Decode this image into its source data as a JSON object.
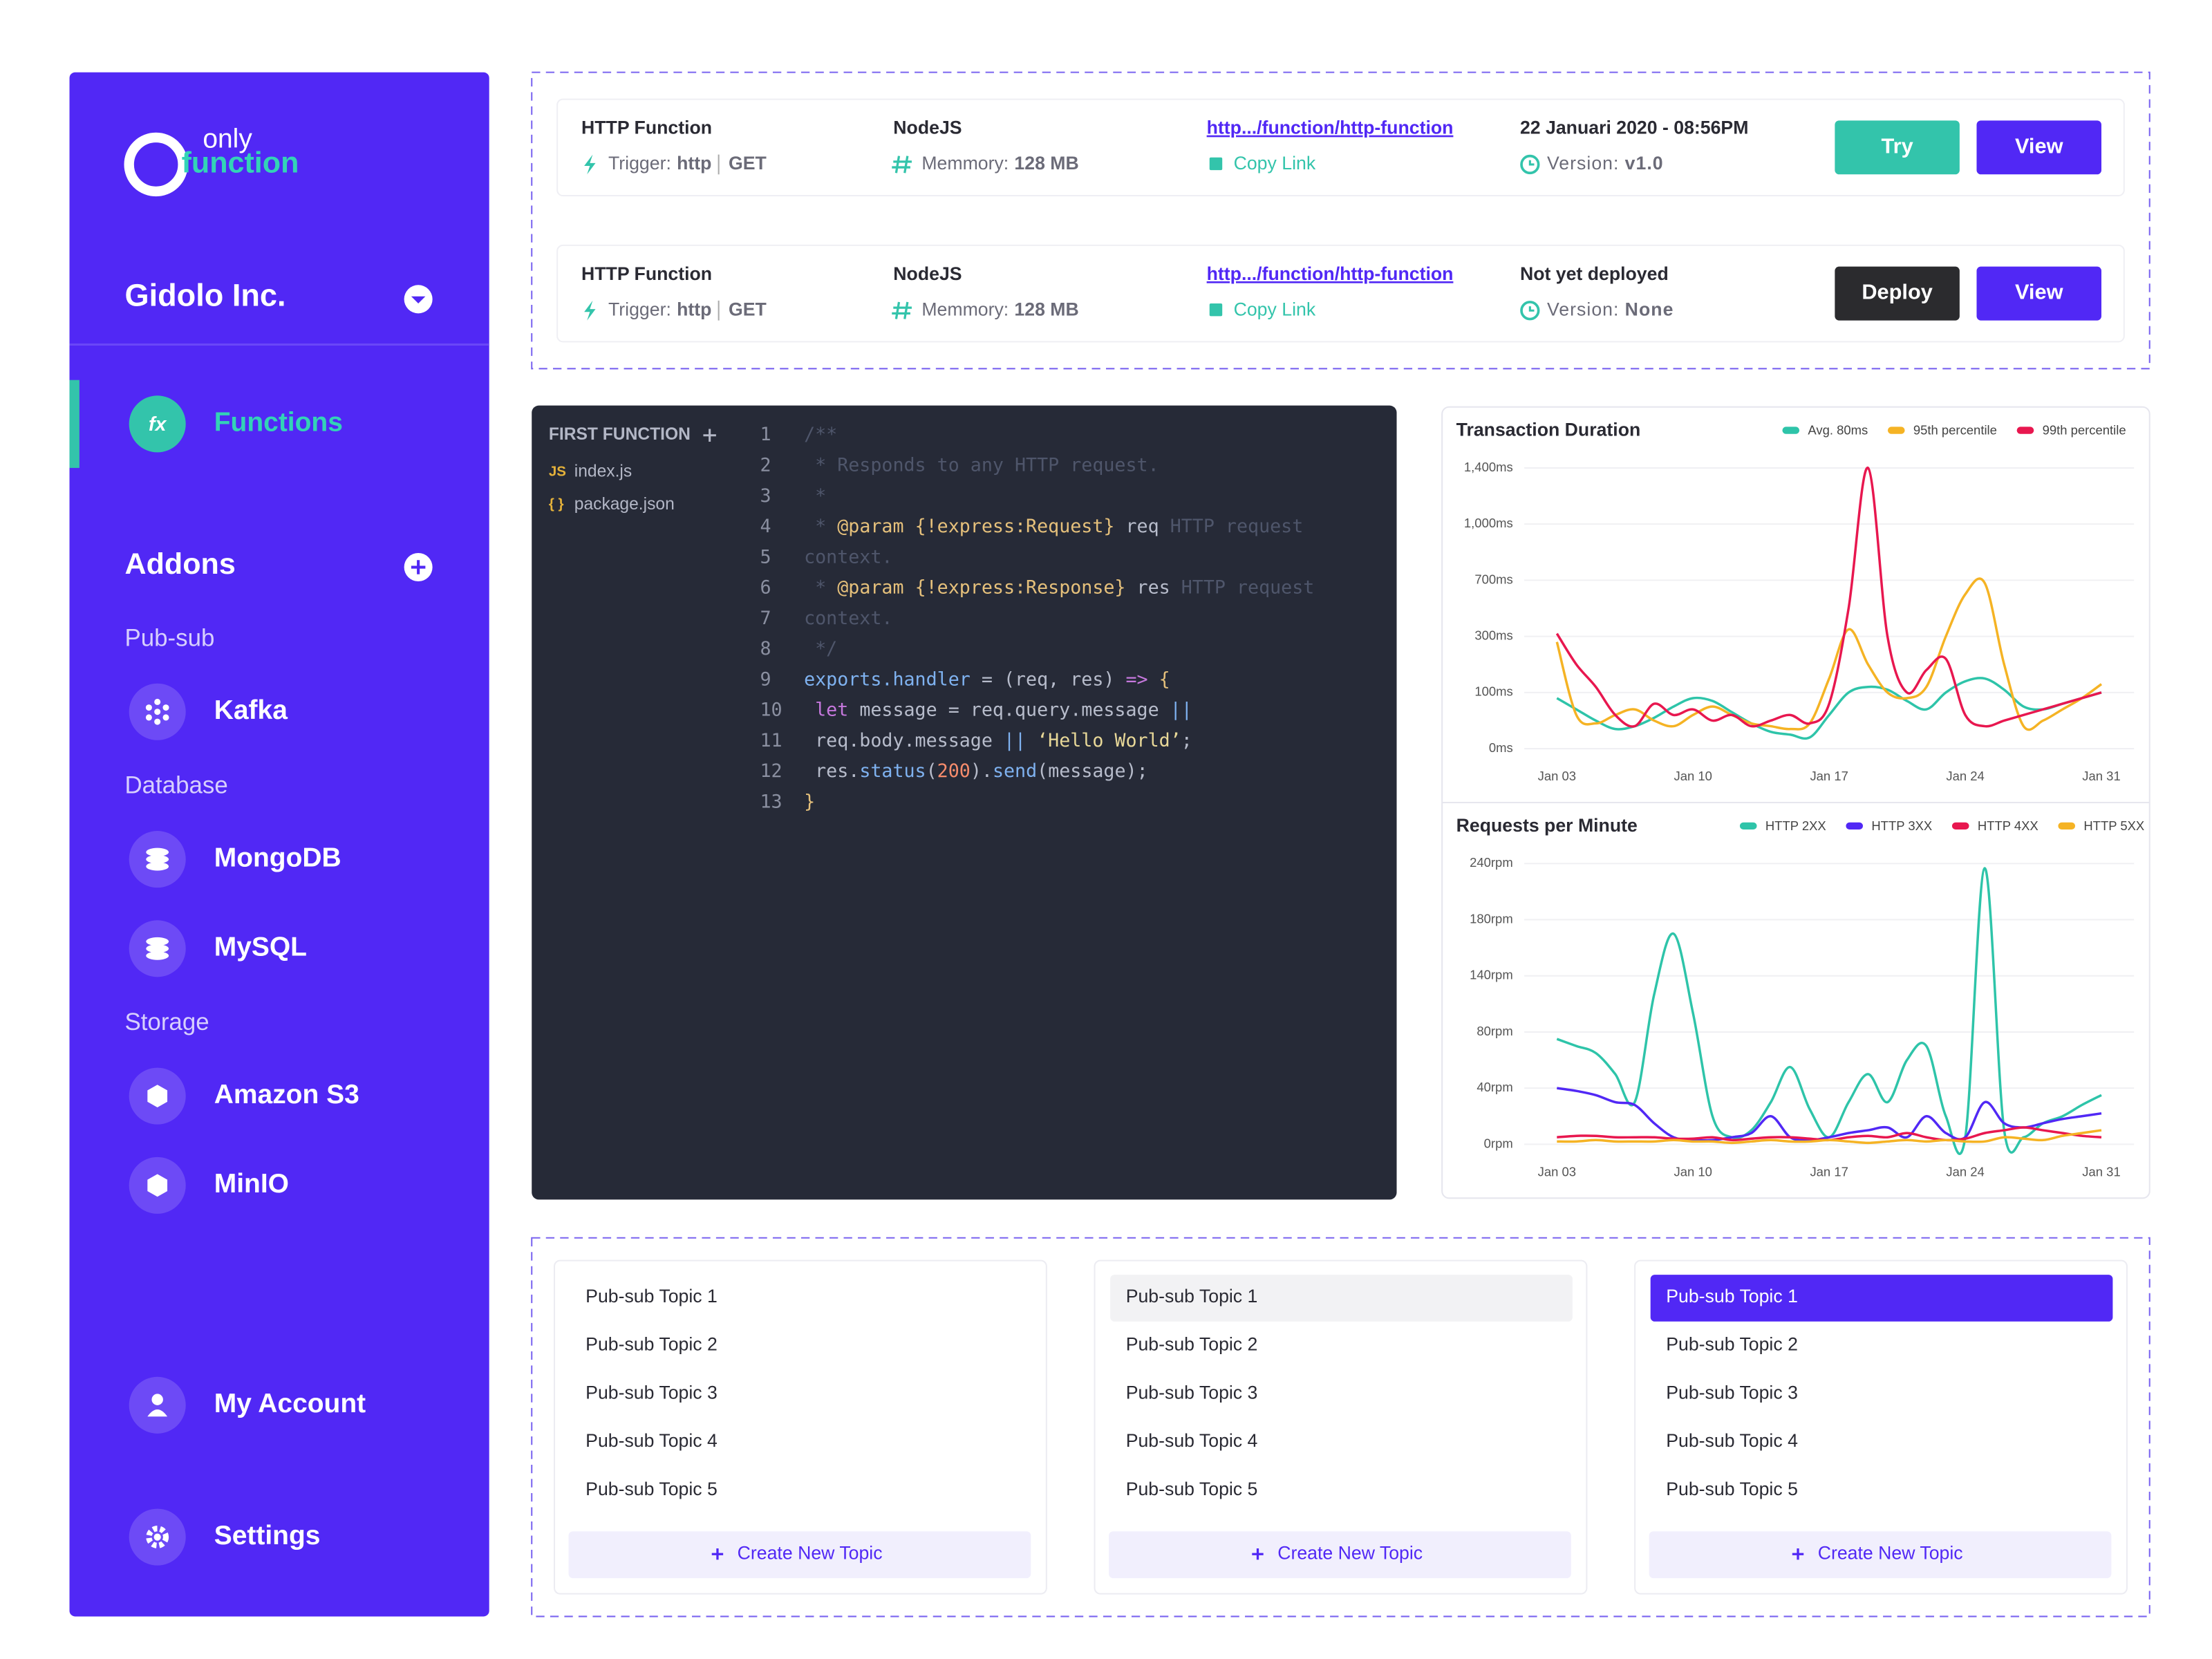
{
  "sidebar": {
    "logo_top": "only",
    "logo_bottom": "function",
    "org": "Gidolo Inc.",
    "functions": "Functions",
    "functions_icon": "fx",
    "addons": "Addons",
    "groups": [
      {
        "label": "Pub-sub",
        "items": [
          "Kafka"
        ]
      },
      {
        "label": "Database",
        "items": [
          "MongoDB",
          "MySQL"
        ]
      },
      {
        "label": "Storage",
        "items": [
          "Amazon S3",
          "MinIO"
        ]
      }
    ],
    "bottom": [
      "My Account",
      "Settings"
    ]
  },
  "functions": [
    {
      "name": "HTTP Function",
      "trigger_label": "Trigger:",
      "trigger": "http",
      "method": "GET",
      "runtime": "NodeJS",
      "memory_label": "Memmory:",
      "memory": "128 MB",
      "link": "http.../function/http-function",
      "copy": "Copy Link",
      "date": "22 Januari 2020 - 08:56PM",
      "version_label": "Version:",
      "version": "v1.0",
      "buttons": [
        {
          "label": "Try",
          "color": "#33c4ab"
        },
        {
          "label": "View",
          "color": "#5128f5"
        }
      ]
    },
    {
      "name": "HTTP Function",
      "trigger_label": "Trigger:",
      "trigger": "http",
      "method": "GET",
      "runtime": "NodeJS",
      "memory_label": "Memmory:",
      "memory": "128 MB",
      "link": "http.../function/http-function",
      "copy": "Copy Link",
      "date": "Not yet deployed",
      "version_label": "Version:",
      "version": "None",
      "buttons": [
        {
          "label": "Deploy",
          "color": "#2b2b2e"
        },
        {
          "label": "View",
          "color": "#5128f5"
        }
      ]
    }
  ],
  "editor": {
    "title": "FIRST FUNCTION",
    "files": [
      {
        "badge": "JS",
        "name": "index.js"
      },
      {
        "badge": "{ }",
        "name": "package.json"
      }
    ],
    "lines": [
      {
        "n": 1,
        "tokens": [
          {
            "text": "/**",
            "color": "#4f566b"
          }
        ]
      },
      {
        "n": 2,
        "tokens": [
          {
            "text": " * Responds to any HTTP request.",
            "color": "#4f566b"
          }
        ]
      },
      {
        "n": 3,
        "tokens": [
          {
            "text": " *",
            "color": "#4f566b"
          }
        ]
      },
      {
        "n": 4,
        "tokens": [
          {
            "text": " * ",
            "color": "#4f566b"
          },
          {
            "text": "@param",
            "color": "#e5c07b"
          },
          {
            "text": " {!express:Request}",
            "color": "#e5c07b"
          },
          {
            "text": " req ",
            "color": "#b7bccb"
          },
          {
            "text": "HTTP request",
            "color": "#4f566b"
          }
        ]
      },
      {
        "n": 5,
        "tokens": [
          {
            "text": "context.",
            "color": "#4f566b"
          }
        ]
      },
      {
        "n": 6,
        "tokens": [
          {
            "text": " * ",
            "color": "#4f566b"
          },
          {
            "text": "@param",
            "color": "#e5c07b"
          },
          {
            "text": " {!express:Response}",
            "color": "#e5c07b"
          },
          {
            "text": " res ",
            "color": "#b7bccb"
          },
          {
            "text": "HTTP request",
            "color": "#4f566b"
          }
        ]
      },
      {
        "n": 7,
        "tokens": [
          {
            "text": "context.",
            "color": "#4f566b"
          }
        ]
      },
      {
        "n": 8,
        "tokens": [
          {
            "text": " */",
            "color": "#4f566b"
          }
        ]
      },
      {
        "n": 9,
        "tokens": [
          {
            "text": "exports.handler",
            "color": "#7fb2f0"
          },
          {
            "text": " = (req, res) ",
            "color": "#b7bccb"
          },
          {
            "text": "=>",
            "color": "#c678dd"
          },
          {
            "text": " {",
            "color": "#e5c07b"
          }
        ]
      },
      {
        "n": 10,
        "tokens": [
          {
            "text": " let",
            "color": "#c678dd"
          },
          {
            "text": " message = req.query.message ",
            "color": "#b7bccb"
          },
          {
            "text": "||",
            "color": "#7fb2f0"
          }
        ]
      },
      {
        "n": 11,
        "tokens": [
          {
            "text": " req.body.message ",
            "color": "#b7bccb"
          },
          {
            "text": "||",
            "color": "#7fb2f0"
          },
          {
            "text": " ‘Hello World’",
            "color": "#e8d898"
          },
          {
            "text": ";",
            "color": "#b7bccb"
          }
        ]
      },
      {
        "n": 12,
        "tokens": [
          {
            "text": " res.",
            "color": "#b7bccb"
          },
          {
            "text": "status",
            "color": "#7fb2f0"
          },
          {
            "text": "(",
            "color": "#b7bccb"
          },
          {
            "text": "200",
            "color": "#f78c6c"
          },
          {
            "text": ").",
            "color": "#b7bccb"
          },
          {
            "text": "send",
            "color": "#7fb2f0"
          },
          {
            "text": "(message);",
            "color": "#b7bccb"
          }
        ]
      },
      {
        "n": 13,
        "tokens": [
          {
            "text": "}",
            "color": "#e5c07b"
          }
        ]
      }
    ]
  },
  "charts": [
    {
      "type": "line",
      "title": "Transaction Duration",
      "grid": true,
      "categories": [
        "Jan 03",
        null,
        null,
        null,
        null,
        null,
        null,
        "Jan 10",
        null,
        null,
        null,
        null,
        null,
        null,
        "Jan 17",
        null,
        null,
        null,
        null,
        null,
        null,
        "Jan 24",
        null,
        null,
        null,
        null,
        null,
        null,
        "Jan 31"
      ],
      "ylim": [
        0,
        1400
      ],
      "yticks": [
        {
          "value": 0,
          "label": "0ms"
        },
        {
          "value": 100,
          "label": "100ms"
        },
        {
          "value": 300,
          "label": "300ms"
        },
        {
          "value": 700,
          "label": "700ms"
        },
        {
          "value": 1000,
          "label": "1,000ms"
        },
        {
          "value": 1400,
          "label": "1,400ms"
        }
      ],
      "series": [
        {
          "name": "Avg. 80ms",
          "color": "#2ec4a9",
          "values": [
            90,
            70,
            50,
            35,
            40,
            55,
            75,
            90,
            85,
            65,
            45,
            30,
            25,
            20,
            60,
            100,
            120,
            110,
            85,
            70,
            100,
            140,
            150,
            110,
            75,
            70,
            80,
            90,
            100
          ]
        },
        {
          "name": "95th percentile",
          "color": "#f5b324",
          "values": [
            280,
            60,
            45,
            60,
            70,
            50,
            40,
            60,
            75,
            60,
            45,
            40,
            35,
            45,
            150,
            350,
            200,
            100,
            90,
            120,
            300,
            600,
            680,
            200,
            40,
            50,
            70,
            90,
            130
          ]
        },
        {
          "name": "99th percentile",
          "color": "#e8174f",
          "values": [
            320,
            200,
            120,
            60,
            40,
            80,
            60,
            70,
            50,
            60,
            40,
            50,
            60,
            45,
            80,
            500,
            1400,
            300,
            100,
            180,
            220,
            60,
            40,
            50,
            60,
            70,
            80,
            90,
            100
          ]
        }
      ]
    },
    {
      "type": "line",
      "title": "Requests per Minute",
      "grid": true,
      "categories": [
        "Jan 03",
        null,
        null,
        null,
        null,
        null,
        null,
        "Jan 10",
        null,
        null,
        null,
        null,
        null,
        null,
        "Jan 17",
        null,
        null,
        null,
        null,
        null,
        null,
        "Jan 24",
        null,
        null,
        null,
        null,
        null,
        null,
        "Jan 31"
      ],
      "ylim": [
        0,
        240
      ],
      "yticks": [
        {
          "value": 0,
          "label": "0rpm"
        },
        {
          "value": 40,
          "label": "40rpm"
        },
        {
          "value": 80,
          "label": "80rpm"
        },
        {
          "value": 140,
          "label": "140rpm"
        },
        {
          "value": 180,
          "label": "180rpm"
        },
        {
          "value": 240,
          "label": "240rpm"
        }
      ],
      "series": [
        {
          "name": "HTTP 2XX",
          "color": "#2ec4a9",
          "values": [
            75,
            70,
            65,
            50,
            30,
            120,
            170,
            100,
            20,
            5,
            10,
            30,
            55,
            25,
            5,
            30,
            50,
            30,
            60,
            70,
            20,
            5,
            235,
            10,
            5,
            15,
            20,
            28,
            35
          ]
        },
        {
          "name": "HTTP 3XX",
          "color": "#5128f5",
          "values": [
            40,
            38,
            35,
            30,
            28,
            15,
            5,
            3,
            3,
            5,
            8,
            20,
            5,
            3,
            5,
            8,
            10,
            12,
            5,
            20,
            8,
            5,
            30,
            15,
            12,
            15,
            18,
            20,
            22
          ]
        },
        {
          "name": "HTTP 4XX",
          "color": "#e8174f",
          "values": [
            5,
            6,
            6,
            5,
            5,
            5,
            4,
            4,
            5,
            3,
            4,
            5,
            5,
            4,
            3,
            5,
            6,
            5,
            8,
            5,
            3,
            4,
            8,
            10,
            12,
            10,
            8,
            6,
            5
          ]
        },
        {
          "name": "HTTP 5XX",
          "color": "#f5b324",
          "values": [
            2,
            2,
            3,
            2,
            2,
            2,
            3,
            2,
            2,
            1,
            2,
            3,
            2,
            2,
            3,
            2,
            1,
            2,
            3,
            2,
            3,
            2,
            2,
            5,
            4,
            3,
            6,
            8,
            10
          ]
        }
      ]
    }
  ],
  "topic_panels": [
    {
      "state": "none",
      "topics": [
        "Pub-sub Topic 1",
        "Pub-sub Topic 2",
        "Pub-sub Topic 3",
        "Pub-sub Topic 4",
        "Pub-sub Topic 5"
      ],
      "create": "Create New Topic"
    },
    {
      "state": "hover",
      "topics": [
        "Pub-sub Topic 1",
        "Pub-sub Topic 2",
        "Pub-sub Topic 3",
        "Pub-sub Topic 4",
        "Pub-sub Topic 5"
      ],
      "create": "Create New Topic"
    },
    {
      "state": "selected",
      "topics": [
        "Pub-sub Topic 1",
        "Pub-sub Topic 2",
        "Pub-sub Topic 3",
        "Pub-sub Topic 4",
        "Pub-sub Topic 5"
      ],
      "create": "Create New Topic"
    }
  ]
}
